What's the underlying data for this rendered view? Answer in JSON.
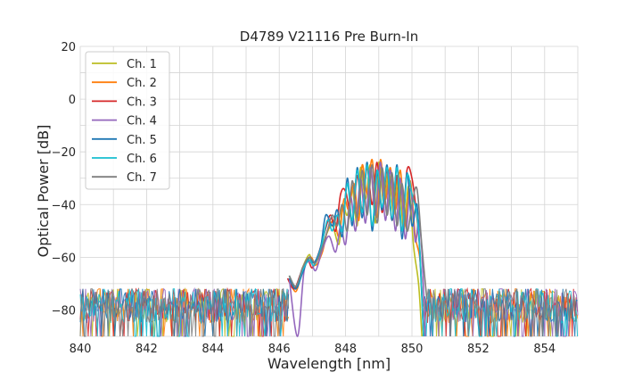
{
  "chart_data": {
    "type": "line",
    "title": "D4789 V21116 Pre Burn-In",
    "xlabel": "Wavelength [nm]",
    "ylabel": "Optical Power [dB]",
    "xlim": [
      840,
      855
    ],
    "ylim": [
      -90,
      20
    ],
    "xticks": [
      840,
      842,
      844,
      846,
      848,
      850,
      852,
      854
    ],
    "yticks": [
      20,
      0,
      -20,
      -40,
      -60,
      -80
    ],
    "grid": true,
    "legend_position": "top-left",
    "noise_floor": {
      "mean": -80,
      "min": -90,
      "max": -72
    },
    "series": [
      {
        "name": "Ch. 1",
        "color": "#bcbd22",
        "x": [
          846.3,
          846.5,
          846.7,
          846.9,
          847.0,
          847.2,
          847.4,
          847.6,
          847.8,
          847.9,
          848.05,
          848.2,
          848.35,
          848.45,
          848.6,
          848.75,
          848.9,
          849.0,
          849.15,
          849.3,
          849.45,
          849.6,
          849.75,
          849.9,
          850.05,
          850.2,
          850.3
        ],
        "y": [
          -67,
          -72,
          -64,
          -59,
          -62,
          -60,
          -52,
          -48,
          -55,
          -40,
          -44,
          -34,
          -48,
          -26,
          -38,
          -25,
          -47,
          -24,
          -40,
          -27,
          -44,
          -28,
          -50,
          -33,
          -56,
          -70,
          -90
        ]
      },
      {
        "name": "Ch. 2",
        "color": "#ff7f0e",
        "x": [
          846.3,
          846.5,
          846.7,
          846.95,
          847.1,
          847.3,
          847.45,
          847.65,
          847.8,
          847.95,
          848.1,
          848.25,
          848.4,
          848.5,
          848.65,
          848.8,
          848.95,
          849.05,
          849.2,
          849.35,
          849.5,
          849.65,
          849.8,
          849.95,
          850.1,
          850.25,
          850.35
        ],
        "y": [
          -68,
          -73,
          -65,
          -60,
          -63,
          -58,
          -50,
          -46,
          -52,
          -38,
          -42,
          -32,
          -46,
          -25,
          -36,
          -23,
          -45,
          -23,
          -38,
          -26,
          -42,
          -27,
          -48,
          -31,
          -52,
          -62,
          -90
        ]
      },
      {
        "name": "Ch. 3",
        "color": "#d62728",
        "x": [
          846.25,
          846.45,
          846.65,
          846.85,
          847.0,
          847.2,
          847.4,
          847.55,
          847.7,
          847.85,
          848.0,
          848.2,
          848.35,
          848.5,
          848.65,
          848.8,
          848.95,
          849.1,
          849.25,
          849.4,
          849.55,
          849.7,
          849.85,
          850.0,
          850.15,
          850.25,
          850.35
        ],
        "y": [
          -68,
          -72,
          -66,
          -61,
          -64,
          -58,
          -49,
          -44,
          -50,
          -36,
          -35,
          -46,
          -29,
          -42,
          -26,
          -40,
          -24,
          -43,
          -27,
          -46,
          -29,
          -50,
          -27,
          -30,
          -45,
          -60,
          -90
        ]
      },
      {
        "name": "Ch. 4",
        "color": "#9467bd",
        "x": [
          846.3,
          846.55,
          846.75,
          846.95,
          847.1,
          847.3,
          847.5,
          847.7,
          847.85,
          848.0,
          848.15,
          848.3,
          848.45,
          848.6,
          848.75,
          848.9,
          849.05,
          849.2,
          849.35,
          849.5,
          849.65,
          849.8,
          849.95,
          850.1,
          850.2,
          850.3,
          850.4
        ],
        "y": [
          -68,
          -90,
          -65,
          -62,
          -65,
          -57,
          -52,
          -58,
          -48,
          -55,
          -37,
          -50,
          -30,
          -47,
          -26,
          -44,
          -24,
          -46,
          -27,
          -50,
          -30,
          -53,
          -34,
          -54,
          -46,
          -58,
          -90
        ]
      },
      {
        "name": "Ch. 5",
        "color": "#1f77b4",
        "x": [
          846.3,
          846.5,
          846.7,
          846.9,
          847.05,
          847.25,
          847.4,
          847.6,
          847.75,
          847.9,
          848.05,
          848.2,
          848.35,
          848.5,
          848.65,
          848.8,
          848.95,
          849.1,
          849.25,
          849.4,
          849.55,
          849.7,
          849.85,
          850.0,
          850.15,
          850.25,
          850.35
        ],
        "y": [
          -68,
          -72,
          -66,
          -60,
          -62,
          -56,
          -44,
          -48,
          -42,
          -52,
          -30,
          -48,
          -26,
          -45,
          -24,
          -50,
          -28,
          -42,
          -25,
          -46,
          -25,
          -53,
          -28,
          -48,
          -40,
          -62,
          -90
        ]
      },
      {
        "name": "Ch. 6",
        "color": "#17becf",
        "x": [
          846.3,
          846.5,
          846.7,
          846.9,
          847.05,
          847.25,
          847.45,
          847.6,
          847.75,
          847.9,
          848.05,
          848.2,
          848.35,
          848.5,
          848.65,
          848.8,
          848.95,
          849.1,
          849.25,
          849.4,
          849.55,
          849.7,
          849.85,
          850.0,
          850.15,
          850.25,
          850.35
        ],
        "y": [
          -67,
          -71,
          -65,
          -61,
          -63,
          -57,
          -46,
          -50,
          -44,
          -50,
          -32,
          -46,
          -27,
          -43,
          -25,
          -48,
          -27,
          -41,
          -26,
          -45,
          -26,
          -50,
          -29,
          -36,
          -44,
          -60,
          -90
        ]
      },
      {
        "name": "Ch. 7",
        "color": "#7f7f7f",
        "x": [
          846.3,
          846.5,
          846.7,
          846.9,
          847.1,
          847.3,
          847.45,
          847.6,
          847.75,
          847.9,
          848.05,
          848.2,
          848.35,
          848.5,
          848.65,
          848.8,
          848.95,
          849.1,
          849.25,
          849.4,
          849.55,
          849.7,
          849.85,
          850.0,
          850.15,
          850.3,
          850.45
        ],
        "y": [
          -67,
          -71,
          -64,
          -60,
          -62,
          -56,
          -50,
          -44,
          -48,
          -40,
          -50,
          -31,
          -45,
          -27,
          -44,
          -25,
          -47,
          -26,
          -44,
          -28,
          -48,
          -32,
          -50,
          -40,
          -34,
          -56,
          -76
        ]
      }
    ]
  }
}
